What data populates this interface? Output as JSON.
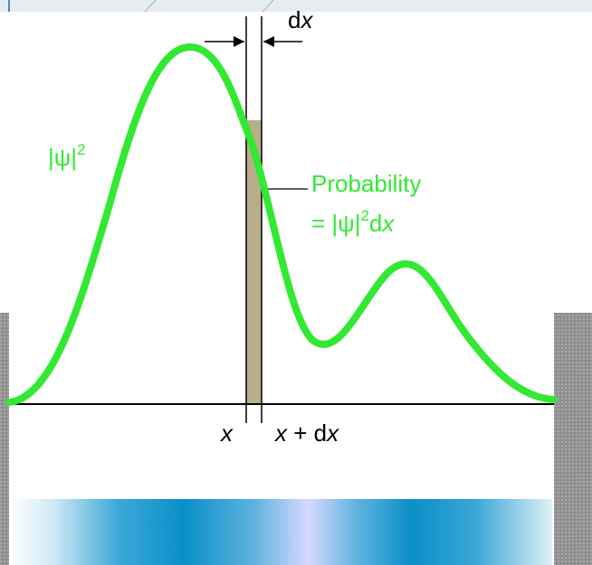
{
  "diagram": {
    "curve_label_base": "|ψ|",
    "curve_label_exp": "2",
    "width_label_d": "d",
    "width_label_var": "x",
    "x_label": "x",
    "x_plus_dx_var1": "x",
    "x_plus_dx_mid": " + d",
    "x_plus_dx_var2": "x",
    "probability_title": "Probability",
    "prob_eq_prefix": "=  |ψ|",
    "prob_eq_exp": "2",
    "prob_eq_d": "d",
    "prob_eq_var": "x"
  },
  "colors": {
    "curve": "#33e833",
    "strip": "#b8ae8a",
    "wall": "#9a9a9a",
    "axis": "#000000",
    "text": "#000000",
    "band_dark": "#0a8fc9",
    "band_light": "#d6d9ff",
    "top_bar": "#e6edf1"
  }
}
